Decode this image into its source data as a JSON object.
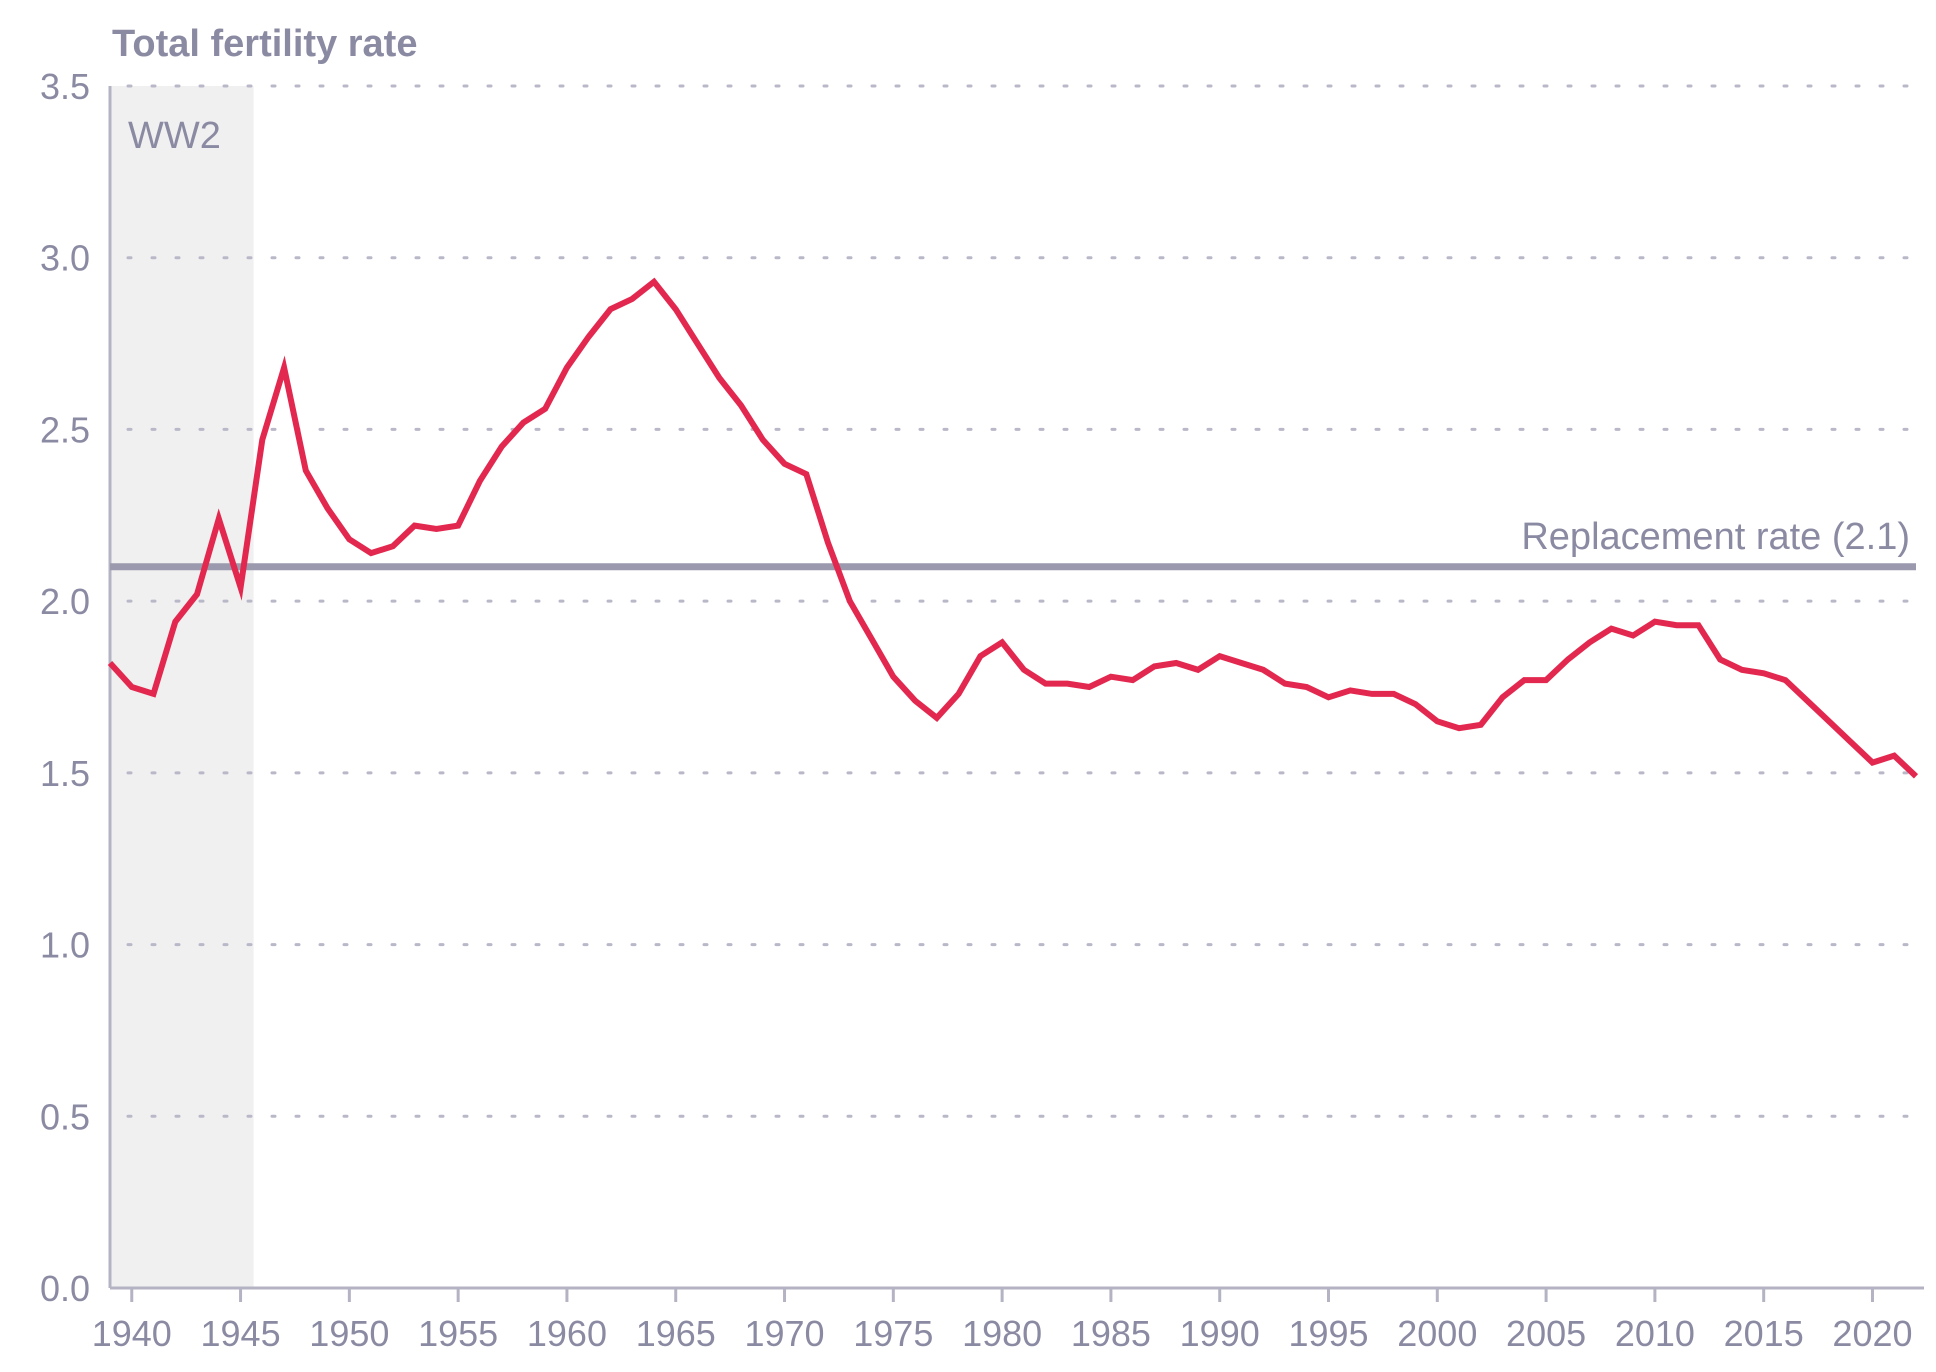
{
  "chart_data": {
    "type": "line",
    "title": "",
    "xlabel": "",
    "ylabel": "Total fertility rate",
    "xlim": [
      1939,
      2022
    ],
    "ylim": [
      0,
      3.5
    ],
    "x_ticks": [
      1940,
      1945,
      1950,
      1955,
      1960,
      1965,
      1970,
      1975,
      1980,
      1985,
      1990,
      1995,
      2000,
      2005,
      2010,
      2015,
      2020
    ],
    "x_tick_labels": [
      "1940",
      "1945",
      "1950",
      "1955",
      "1960",
      "1965",
      "1970",
      "1975",
      "1980",
      "1985",
      "1990",
      "1995",
      "2000",
      "2005",
      "2010",
      "2015",
      "2020"
    ],
    "y_ticks": [
      0,
      0.5,
      1.0,
      1.5,
      2.0,
      2.5,
      3.0,
      3.5
    ],
    "y_tick_labels": [
      "0.0",
      "0.5",
      "1.0",
      "1.5",
      "2.0",
      "2.5",
      "3.0",
      "3.5"
    ],
    "grid": "horizontal dotted",
    "line_color": "#e3284f",
    "reference_line": {
      "value": 2.1,
      "label": "Replacement rate (2.1)",
      "color": "#9a99ad"
    },
    "shaded_region": {
      "x_start": 1939,
      "x_end": 1945.6,
      "label": "WW2",
      "color": "#f0f0f0"
    },
    "series": [
      {
        "x": [
          1939,
          1940,
          1941,
          1942,
          1943,
          1944,
          1945,
          1946,
          1947,
          1948,
          1949,
          1950,
          1951,
          1952,
          1953,
          1954,
          1955,
          1956,
          1957,
          1958,
          1959,
          1960,
          1961,
          1962,
          1963,
          1964,
          1965,
          1966,
          1967,
          1968,
          1969,
          1970,
          1971,
          1972,
          1973,
          1974,
          1975,
          1976,
          1977,
          1978,
          1979,
          1980,
          1981,
          1982,
          1983,
          1984,
          1985,
          1986,
          1987,
          1988,
          1989,
          1990,
          1991,
          1992,
          1993,
          1994,
          1995,
          1996,
          1997,
          1998,
          1999,
          2000,
          2001,
          2002,
          2003,
          2004,
          2005,
          2006,
          2007,
          2008,
          2009,
          2010,
          2011,
          2012,
          2013,
          2014,
          2015,
          2016,
          2017,
          2018,
          2019,
          2020,
          2021,
          2022
        ],
        "values": [
          1.82,
          1.75,
          1.73,
          1.94,
          2.02,
          2.24,
          2.04,
          2.47,
          2.68,
          2.38,
          2.27,
          2.18,
          2.14,
          2.16,
          2.22,
          2.21,
          2.22,
          2.35,
          2.45,
          2.52,
          2.56,
          2.68,
          2.77,
          2.85,
          2.88,
          2.93,
          2.85,
          2.75,
          2.65,
          2.57,
          2.47,
          2.4,
          2.37,
          2.17,
          2.0,
          1.89,
          1.78,
          1.71,
          1.66,
          1.73,
          1.84,
          1.88,
          1.8,
          1.76,
          1.76,
          1.75,
          1.78,
          1.77,
          1.81,
          1.82,
          1.8,
          1.84,
          1.82,
          1.8,
          1.76,
          1.75,
          1.72,
          1.74,
          1.73,
          1.73,
          1.7,
          1.65,
          1.63,
          1.64,
          1.72,
          1.77,
          1.77,
          1.83,
          1.88,
          1.92,
          1.9,
          1.94,
          1.93,
          1.93,
          1.83,
          1.8,
          1.79,
          1.77,
          1.71,
          1.65,
          1.59,
          1.53,
          1.55,
          1.49
        ]
      }
    ]
  }
}
